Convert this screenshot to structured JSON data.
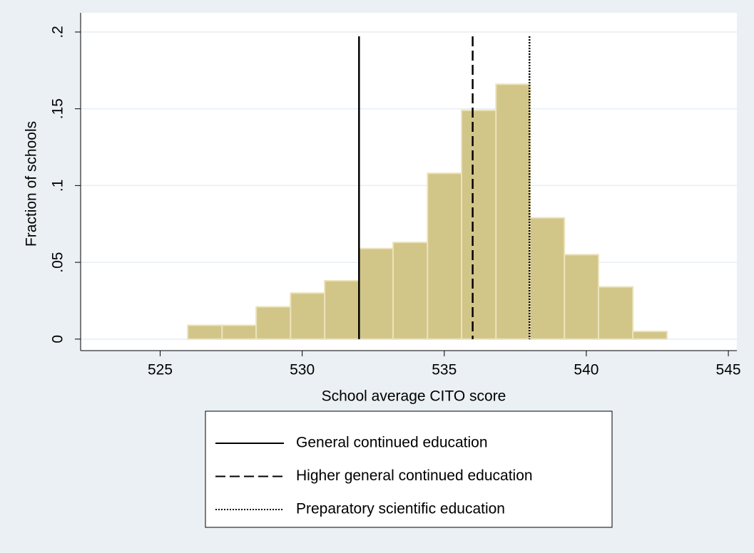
{
  "chart_data": {
    "type": "histogram",
    "xlabel": "School average CITO score",
    "ylabel": "Fraction of schools",
    "bins": [
      525.97,
      527.18,
      528.38,
      529.59,
      530.79,
      532.0,
      533.2,
      534.41,
      535.61,
      536.82,
      538.02,
      539.23,
      540.43,
      541.64,
      542.84
    ],
    "values": [
      0.009,
      0.009,
      0.021,
      0.03,
      0.038,
      0.059,
      0.063,
      0.108,
      0.149,
      0.166,
      0.079,
      0.055,
      0.034,
      0.005
    ],
    "color": "#d2c588",
    "edge_color": "#ebe3bb",
    "xlim": [
      522.2,
      545.3
    ],
    "xticks": [
      525,
      530,
      535,
      540,
      545
    ],
    "ylim": [
      -0.0075,
      0.2125
    ],
    "yticks": [
      0,
      {
        "value": 0.05,
        "label": ".05"
      },
      {
        "value": 0.1,
        "label": ".1"
      },
      {
        "value": 0.15,
        "label": ".15"
      },
      {
        "value": 0.2,
        "label": ".2"
      }
    ],
    "grid": true,
    "reference_lines": [
      {
        "name": "General continued education",
        "x": 532,
        "style": "solid"
      },
      {
        "name": "Higher general continued education",
        "x": 536,
        "style": "dashed"
      },
      {
        "name": "Preparatory scientific education",
        "x": 538,
        "style": "dotted"
      }
    ],
    "legend": "bottom"
  }
}
